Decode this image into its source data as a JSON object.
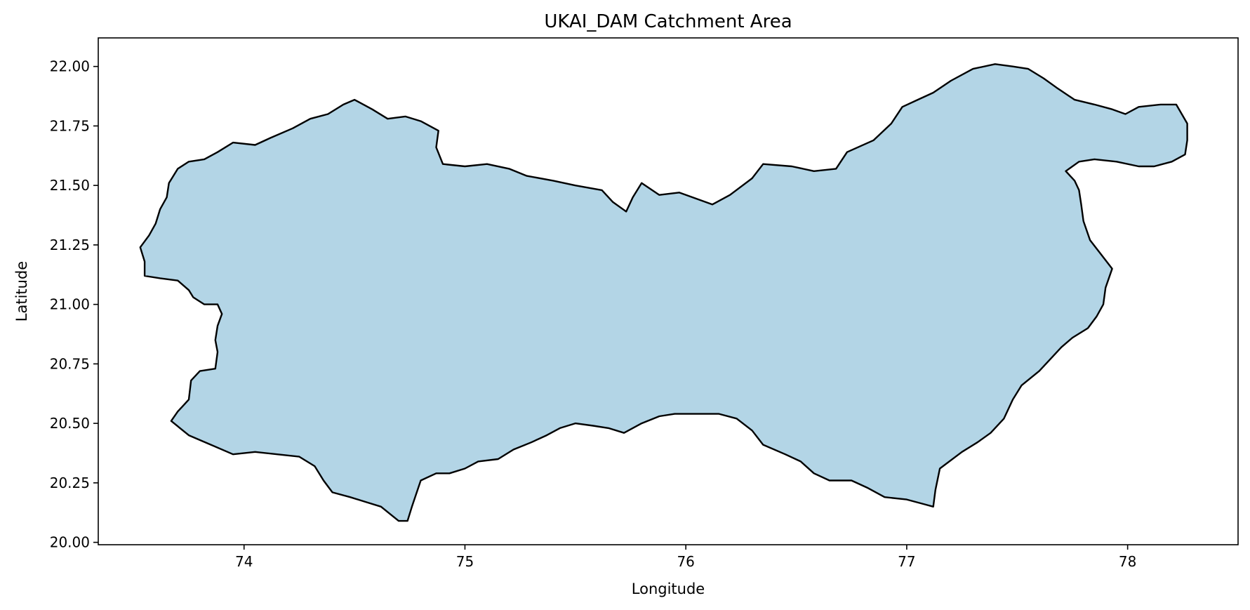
{
  "chart_data": {
    "type": "area",
    "title": "UKAI_DAM Catchment Area",
    "xlabel": "Longitude",
    "ylabel": "Latitude",
    "xlim": [
      73.34,
      78.5
    ],
    "ylim": [
      19.99,
      22.12
    ],
    "x_ticks": [
      74,
      75,
      76,
      77,
      78
    ],
    "x_tick_labels": [
      "74",
      "75",
      "76",
      "77",
      "78"
    ],
    "y_ticks": [
      20.0,
      20.25,
      20.5,
      20.75,
      21.0,
      21.25,
      21.5,
      21.75,
      22.0
    ],
    "y_tick_labels": [
      "20.00",
      "20.25",
      "20.50",
      "20.75",
      "21.00",
      "21.25",
      "21.50",
      "21.75",
      "22.00"
    ],
    "grid": false,
    "fill_color": "#b3d5e6",
    "edge_color": "#000000",
    "boundary": [
      [
        73.67,
        20.51
      ],
      [
        73.75,
        20.45
      ],
      [
        73.85,
        20.41
      ],
      [
        73.95,
        20.37
      ],
      [
        74.05,
        20.38
      ],
      [
        74.15,
        20.37
      ],
      [
        74.25,
        20.36
      ],
      [
        74.32,
        20.32
      ],
      [
        74.36,
        20.26
      ],
      [
        74.4,
        20.21
      ],
      [
        74.48,
        20.19
      ],
      [
        74.55,
        20.17
      ],
      [
        74.62,
        20.15
      ],
      [
        74.66,
        20.12
      ],
      [
        74.7,
        20.09
      ],
      [
        74.74,
        20.09
      ],
      [
        74.76,
        20.15
      ],
      [
        74.8,
        20.26
      ],
      [
        74.87,
        20.29
      ],
      [
        74.93,
        20.29
      ],
      [
        75.0,
        20.31
      ],
      [
        75.06,
        20.34
      ],
      [
        75.15,
        20.35
      ],
      [
        75.22,
        20.39
      ],
      [
        75.3,
        20.42
      ],
      [
        75.37,
        20.45
      ],
      [
        75.43,
        20.48
      ],
      [
        75.5,
        20.5
      ],
      [
        75.58,
        20.49
      ],
      [
        75.65,
        20.48
      ],
      [
        75.72,
        20.46
      ],
      [
        75.8,
        20.5
      ],
      [
        75.88,
        20.53
      ],
      [
        75.95,
        20.54
      ],
      [
        76.05,
        20.54
      ],
      [
        76.15,
        20.54
      ],
      [
        76.23,
        20.52
      ],
      [
        76.3,
        20.47
      ],
      [
        76.35,
        20.41
      ],
      [
        76.45,
        20.37
      ],
      [
        76.52,
        20.34
      ],
      [
        76.58,
        20.29
      ],
      [
        76.65,
        20.26
      ],
      [
        76.75,
        20.26
      ],
      [
        76.82,
        20.23
      ],
      [
        76.9,
        20.19
      ],
      [
        77.0,
        20.18
      ],
      [
        77.08,
        20.16
      ],
      [
        77.12,
        20.15
      ],
      [
        77.13,
        20.22
      ],
      [
        77.15,
        20.31
      ],
      [
        77.25,
        20.38
      ],
      [
        77.32,
        20.42
      ],
      [
        77.38,
        20.46
      ],
      [
        77.44,
        20.52
      ],
      [
        77.48,
        20.6
      ],
      [
        77.52,
        20.66
      ],
      [
        77.6,
        20.72
      ],
      [
        77.7,
        20.82
      ],
      [
        77.75,
        20.86
      ],
      [
        77.82,
        20.9
      ],
      [
        77.86,
        20.95
      ],
      [
        77.89,
        21.0
      ],
      [
        77.9,
        21.07
      ],
      [
        77.93,
        21.15
      ],
      [
        77.88,
        21.21
      ],
      [
        77.83,
        21.27
      ],
      [
        77.8,
        21.35
      ],
      [
        77.79,
        21.42
      ],
      [
        77.78,
        21.48
      ],
      [
        77.76,
        21.52
      ],
      [
        77.72,
        21.56
      ],
      [
        77.78,
        21.6
      ],
      [
        77.85,
        21.61
      ],
      [
        77.95,
        21.6
      ],
      [
        78.05,
        21.58
      ],
      [
        78.12,
        21.58
      ],
      [
        78.2,
        21.6
      ],
      [
        78.26,
        21.63
      ],
      [
        78.27,
        21.69
      ],
      [
        78.27,
        21.76
      ],
      [
        78.22,
        21.84
      ],
      [
        78.15,
        21.84
      ],
      [
        78.05,
        21.83
      ],
      [
        77.99,
        21.8
      ],
      [
        77.93,
        21.82
      ],
      [
        77.85,
        21.84
      ],
      [
        77.76,
        21.86
      ],
      [
        77.68,
        21.91
      ],
      [
        77.62,
        21.95
      ],
      [
        77.55,
        21.99
      ],
      [
        77.48,
        22.0
      ],
      [
        77.4,
        22.01
      ],
      [
        77.3,
        21.99
      ],
      [
        77.2,
        21.94
      ],
      [
        77.12,
        21.89
      ],
      [
        77.05,
        21.86
      ],
      [
        76.98,
        21.83
      ],
      [
        76.93,
        21.76
      ],
      [
        76.85,
        21.69
      ],
      [
        76.73,
        21.64
      ],
      [
        76.68,
        21.57
      ],
      [
        76.58,
        21.56
      ],
      [
        76.48,
        21.58
      ],
      [
        76.35,
        21.59
      ],
      [
        76.3,
        21.53
      ],
      [
        76.2,
        21.46
      ],
      [
        76.12,
        21.42
      ],
      [
        75.97,
        21.47
      ],
      [
        75.88,
        21.46
      ],
      [
        75.8,
        21.51
      ],
      [
        75.76,
        21.45
      ],
      [
        75.73,
        21.39
      ],
      [
        75.67,
        21.43
      ],
      [
        75.62,
        21.48
      ],
      [
        75.5,
        21.5
      ],
      [
        75.4,
        21.52
      ],
      [
        75.28,
        21.54
      ],
      [
        75.2,
        21.57
      ],
      [
        75.1,
        21.59
      ],
      [
        75.0,
        21.58
      ],
      [
        74.9,
        21.59
      ],
      [
        74.87,
        21.66
      ],
      [
        74.88,
        21.73
      ],
      [
        74.8,
        21.77
      ],
      [
        74.73,
        21.79
      ],
      [
        74.65,
        21.78
      ],
      [
        74.58,
        21.82
      ],
      [
        74.5,
        21.86
      ],
      [
        74.45,
        21.84
      ],
      [
        74.38,
        21.8
      ],
      [
        74.3,
        21.78
      ],
      [
        74.22,
        21.74
      ],
      [
        74.12,
        21.7
      ],
      [
        74.05,
        21.67
      ],
      [
        73.95,
        21.68
      ],
      [
        73.88,
        21.64
      ],
      [
        73.82,
        21.61
      ],
      [
        73.75,
        21.6
      ],
      [
        73.7,
        21.57
      ],
      [
        73.66,
        21.51
      ],
      [
        73.65,
        21.45
      ],
      [
        73.62,
        21.4
      ],
      [
        73.6,
        21.34
      ],
      [
        73.57,
        21.29
      ],
      [
        73.53,
        21.24
      ],
      [
        73.55,
        21.18
      ],
      [
        73.55,
        21.12
      ],
      [
        73.62,
        21.11
      ],
      [
        73.7,
        21.1
      ],
      [
        73.75,
        21.06
      ],
      [
        73.77,
        21.03
      ],
      [
        73.82,
        21.0
      ],
      [
        73.88,
        21.0
      ],
      [
        73.9,
        20.96
      ],
      [
        73.88,
        20.91
      ],
      [
        73.87,
        20.85
      ],
      [
        73.88,
        20.8
      ],
      [
        73.87,
        20.73
      ],
      [
        73.8,
        20.72
      ],
      [
        73.76,
        20.68
      ],
      [
        73.75,
        20.6
      ],
      [
        73.72,
        20.57
      ],
      [
        73.7,
        20.55
      ],
      [
        73.67,
        20.51
      ]
    ]
  }
}
